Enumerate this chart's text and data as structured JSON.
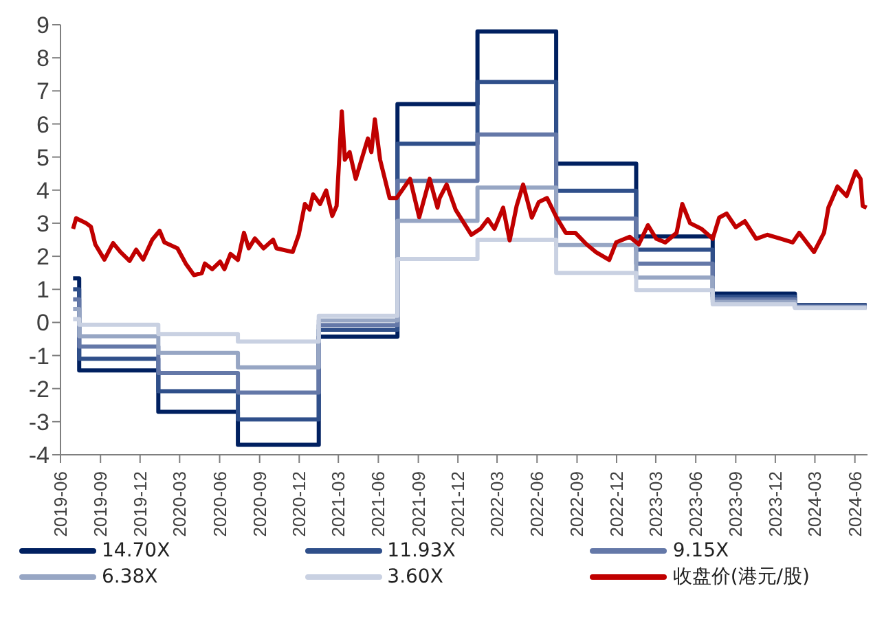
{
  "chart_data": {
    "type": "line",
    "xlim": [
      "2019-06",
      "2024-06-30"
    ],
    "xticks": [
      "2019-06",
      "2019-09",
      "2019-12",
      "2020-03",
      "2020-06",
      "2020-09",
      "2020-12",
      "2021-03",
      "2021-06",
      "2021-09",
      "2021-12",
      "2022-03",
      "2022-06",
      "2022-09",
      "2022-12",
      "2023-03",
      "2023-06",
      "2023-09",
      "2023-12",
      "2024-03",
      "2024-06"
    ],
    "ylim": [
      -4,
      9
    ],
    "yticks": [
      -4,
      -3,
      -2,
      -1,
      0,
      1,
      2,
      3,
      4,
      5,
      6,
      7,
      8,
      9
    ],
    "legend": "bottom",
    "grid": false,
    "series": [
      {
        "name": "14.70X",
        "type": "step",
        "color": "#002060",
        "x": [
          "2019-06-30",
          "2019-07-14",
          "2020-01-12",
          "2020-07-13",
          "2021-01-15",
          "2021-07-15",
          "2022-01-15",
          "2022-07-15",
          "2023-01-15",
          "2023-07-10",
          "2024-01-15",
          "2024-06-28"
        ],
        "values": [
          1.33,
          -1.45,
          -2.7,
          -3.7,
          -0.43,
          6.6,
          8.8,
          4.8,
          2.6,
          0.87,
          0.52,
          0.52
        ]
      },
      {
        "name": "11.93X",
        "type": "step",
        "color": "#2f4f8a",
        "x": [
          "2019-06-30",
          "2019-07-14",
          "2020-01-12",
          "2020-07-13",
          "2021-01-15",
          "2021-07-15",
          "2022-01-15",
          "2022-07-15",
          "2023-01-15",
          "2023-07-10",
          "2024-01-15",
          "2024-06-28"
        ],
        "values": [
          1.0,
          -1.1,
          -2.08,
          -2.93,
          -0.22,
          5.4,
          7.27,
          3.98,
          2.2,
          0.78,
          0.5,
          0.5
        ]
      },
      {
        "name": "9.15X",
        "type": "step",
        "color": "#6478a8",
        "x": [
          "2019-06-30",
          "2019-07-14",
          "2020-01-12",
          "2020-07-13",
          "2021-01-15",
          "2021-07-15",
          "2022-01-15",
          "2022-07-15",
          "2023-01-15",
          "2023-07-10",
          "2024-01-15",
          "2024-06-28"
        ],
        "values": [
          0.7,
          -0.73,
          -1.53,
          -2.12,
          -0.08,
          4.28,
          5.68,
          3.14,
          1.78,
          0.7,
          0.48,
          0.48
        ]
      },
      {
        "name": "6.38X",
        "type": "step",
        "color": "#97a6c4",
        "x": [
          "2019-06-30",
          "2019-07-14",
          "2020-01-12",
          "2020-07-13",
          "2021-01-15",
          "2021-07-15",
          "2022-01-15",
          "2022-07-15",
          "2023-01-15",
          "2023-07-10",
          "2024-01-15",
          "2024-06-28"
        ],
        "values": [
          0.4,
          -0.42,
          -0.92,
          -1.36,
          0.06,
          3.07,
          4.08,
          2.34,
          1.36,
          0.62,
          0.46,
          0.46
        ]
      },
      {
        "name": "3.60X",
        "type": "step",
        "color": "#c9d1e2",
        "x": [
          "2019-06-30",
          "2019-07-14",
          "2020-01-12",
          "2020-07-13",
          "2021-01-15",
          "2021-07-15",
          "2022-01-15",
          "2022-07-15",
          "2023-01-15",
          "2023-07-10",
          "2024-01-15",
          "2024-06-28"
        ],
        "values": [
          0.1,
          -0.07,
          -0.35,
          -0.58,
          0.2,
          1.92,
          2.5,
          1.5,
          0.98,
          0.55,
          0.44,
          0.44
        ]
      },
      {
        "name": "收盘价(港元/股)",
        "color": "#c00000",
        "x": [
          "2019-06-30",
          "2019-07-07",
          "2019-07-30",
          "2019-08-10",
          "2019-08-20",
          "2019-09-10",
          "2019-09-30",
          "2019-10-17",
          "2019-11-07",
          "2019-11-22",
          "2019-12-08",
          "2019-12-29",
          "2020-01-15",
          "2020-01-26",
          "2020-02-25",
          "2020-03-15",
          "2020-04-03",
          "2020-04-21",
          "2020-04-28",
          "2020-05-15",
          "2020-06-02",
          "2020-06-12",
          "2020-06-26",
          "2020-07-13",
          "2020-07-27",
          "2020-08-07",
          "2020-08-21",
          "2020-09-10",
          "2020-10-02",
          "2020-10-10",
          "2020-11-16",
          "2020-11-30",
          "2020-12-14",
          "2020-12-25",
          "2021-01-02",
          "2021-01-18",
          "2021-02-01",
          "2021-02-15",
          "2021-02-25",
          "2021-03-09",
          "2021-03-16",
          "2021-03-27",
          "2021-04-10",
          "2021-04-26",
          "2021-05-08",
          "2021-05-16",
          "2021-05-24",
          "2021-06-05",
          "2021-06-27",
          "2021-07-13",
          "2021-08-13",
          "2021-09-03",
          "2021-09-27",
          "2021-10-15",
          "2021-10-20",
          "2021-11-05",
          "2021-11-26",
          "2022-01-01",
          "2022-01-22",
          "2022-02-08",
          "2022-02-23",
          "2022-03-15",
          "2022-03-30",
          "2022-04-15",
          "2022-04-30",
          "2022-05-20",
          "2022-06-05",
          "2022-06-24",
          "2022-07-16",
          "2022-08-06",
          "2022-08-28",
          "2022-09-23",
          "2022-10-14",
          "2022-11-14",
          "2022-11-30",
          "2022-12-31",
          "2023-01-21",
          "2023-02-11",
          "2023-03-02",
          "2023-03-23",
          "2023-04-18",
          "2023-05-01",
          "2023-05-19",
          "2023-06-14",
          "2023-07-10",
          "2023-07-25",
          "2023-08-11",
          "2023-09-01",
          "2023-09-22",
          "2023-10-18",
          "2023-11-13",
          "2023-12-14",
          "2024-01-10",
          "2024-01-25",
          "2024-02-28",
          "2024-03-22",
          "2024-04-01",
          "2024-04-22",
          "2024-05-13",
          "2024-06-03",
          "2024-06-14",
          "2024-06-19",
          "2024-06-28"
        ],
        "values": [
          2.83,
          3.15,
          3.0,
          2.89,
          2.36,
          1.9,
          2.4,
          2.13,
          1.86,
          2.2,
          1.9,
          2.5,
          2.77,
          2.42,
          2.24,
          1.78,
          1.43,
          1.49,
          1.78,
          1.61,
          1.84,
          1.61,
          2.07,
          1.89,
          2.71,
          2.24,
          2.54,
          2.24,
          2.5,
          2.24,
          2.13,
          2.65,
          3.58,
          3.41,
          3.87,
          3.58,
          3.99,
          3.22,
          3.52,
          6.38,
          4.92,
          5.15,
          4.34,
          5.04,
          5.56,
          5.15,
          6.14,
          4.92,
          3.76,
          3.76,
          4.34,
          3.18,
          4.34,
          3.47,
          3.76,
          4.17,
          3.4,
          2.65,
          2.83,
          3.12,
          2.83,
          3.47,
          2.48,
          3.52,
          4.17,
          3.17,
          3.64,
          3.76,
          3.17,
          2.71,
          2.71,
          2.36,
          2.13,
          1.89,
          2.42,
          2.59,
          2.36,
          2.94,
          2.53,
          2.42,
          2.71,
          3.58,
          3.0,
          2.83,
          2.53,
          3.17,
          3.29,
          2.88,
          3.06,
          2.53,
          2.65,
          2.53,
          2.42,
          2.71,
          2.13,
          2.71,
          3.47,
          4.11,
          3.82,
          4.57,
          4.34,
          3.52,
          3.47
        ]
      }
    ]
  }
}
